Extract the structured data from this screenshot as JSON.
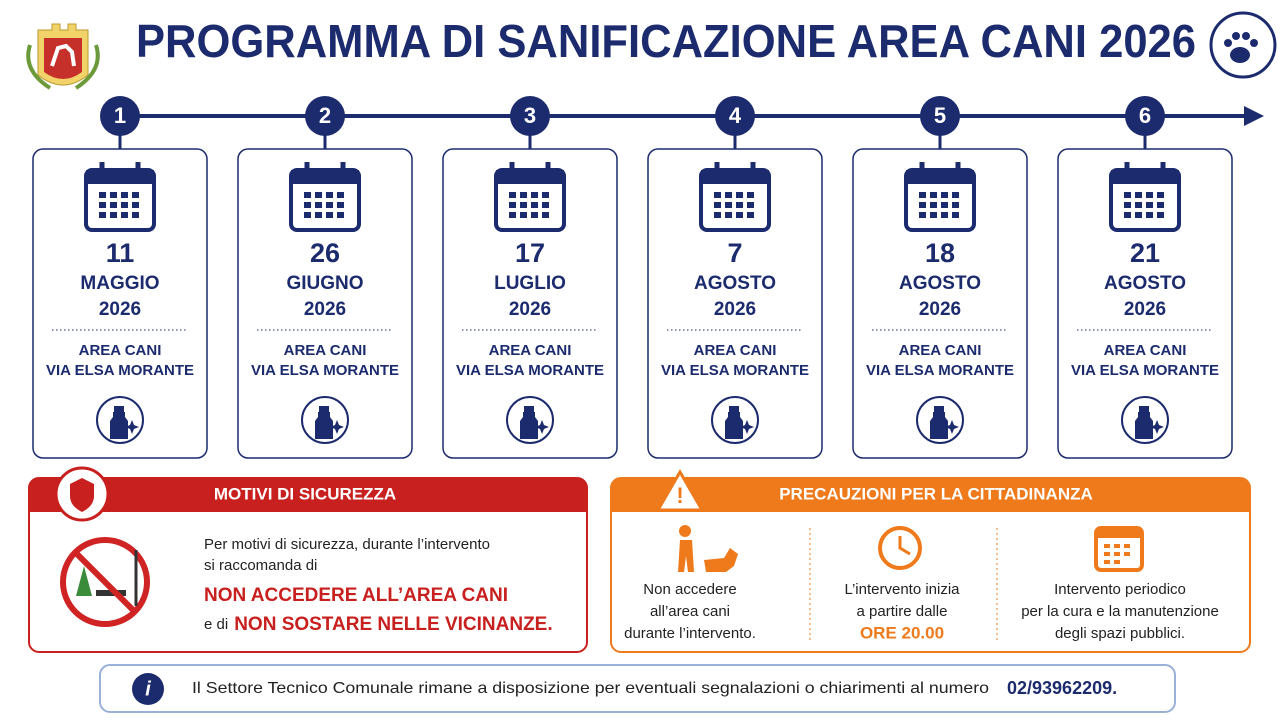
{
  "header": {
    "title": "PROGRAMMA DI SANIFICAZIONE AREA CANI 2026"
  },
  "steps": [
    {
      "number": "1",
      "day": "11",
      "month": "MAGGIO",
      "year": "2026",
      "place": [
        "AREA CANI",
        "VIA ELSA MORANTE"
      ]
    },
    {
      "number": "2",
      "day": "26",
      "month": "GIUGNO",
      "year": "2026",
      "place": [
        "AREA CANI",
        "VIA ELSA MORANTE"
      ]
    },
    {
      "number": "3",
      "day": "17",
      "month": "LUGLIO",
      "year": "2026",
      "place": [
        "AREA CANI",
        "VIA ELSA MORANTE"
      ]
    },
    {
      "number": "4",
      "day": "7",
      "month": "AGOSTO",
      "year": "2026",
      "place": [
        "AREA CANI",
        "VIA ELSA MORANTE"
      ]
    },
    {
      "number": "5",
      "day": "18",
      "month": "AGOSTO",
      "year": "2026",
      "place": [
        "AREA CANI",
        "VIA ELSA MORANTE"
      ]
    },
    {
      "number": "6",
      "day": "21",
      "month": "AGOSTO",
      "year": "2026",
      "place": [
        "AREA CANI",
        "VIA ELSA MORANTE"
      ]
    }
  ],
  "safety": {
    "title": "MOTIVI DI SICUREZZA",
    "lines": [
      "Per motivi di sicurezza, durante l’intervento",
      "si raccomanda di"
    ],
    "warning1": "NON ACCEDERE ALL’AREA CANI",
    "connector": "e di",
    "warning2": "NON SOSTARE NELLE VICINANZE."
  },
  "precautions": {
    "title": "PRECAUZIONI PER LA CITTADINANZA",
    "items": [
      {
        "lines": [
          "Non accedere",
          "all’area cani",
          "durante l’intervento."
        ]
      },
      {
        "lines": [
          "L’intervento inizia",
          "a partire dalle",
          "ORE 20.00"
        ]
      },
      {
        "lines": [
          "Intervento periodico",
          "per la cura e la manutenzione",
          "degli spazi pubblici."
        ]
      }
    ]
  },
  "footer": {
    "text": "Il Settore Tecnico Comunale rimane a disposizione per eventuali segnalazioni o chiarimenti al numero",
    "phone": "02/93962209."
  }
}
